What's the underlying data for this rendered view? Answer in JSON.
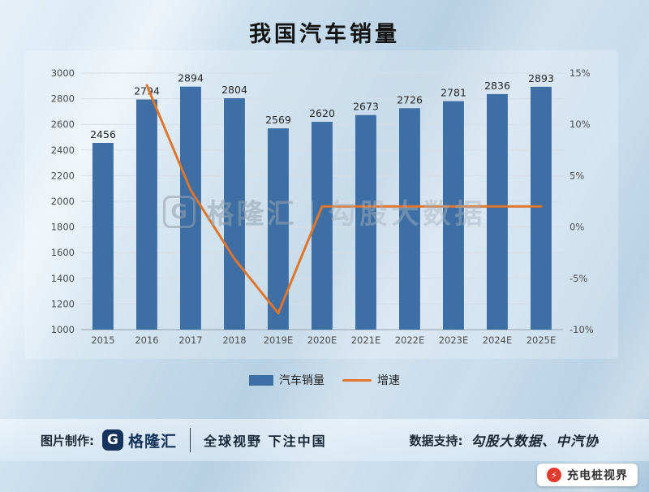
{
  "title": "我国汽车销量",
  "colors": {
    "bar": "#3d6fa5",
    "line": "#e0752c",
    "grid": "#d8dde2",
    "axis_text": "#4d4d4d",
    "badge_red": "#e23b2e",
    "logo_navy": "#16335c"
  },
  "watermark": {
    "logo_letter": "G",
    "brand": "格隆汇",
    "divider": "|",
    "text": "勾股大数据"
  },
  "legend": [
    {
      "label": "汽车销量",
      "swatch": "bar"
    },
    {
      "label": "增速",
      "swatch": "line"
    }
  ],
  "footer": {
    "left_label": "图片制作:",
    "logo_letter": "G",
    "logo_text": "格隆汇",
    "slogan": "全球视野 下注中国",
    "right_label": "数据支持:",
    "right_text": "勾股大数据、中汽协"
  },
  "badge": {
    "icon": "⚡",
    "text": "充电桩视界"
  },
  "chart_data": {
    "type": "bar",
    "title": "我国汽车销量",
    "categories": [
      "2015",
      "2016",
      "2017",
      "2018",
      "2019E",
      "2020E",
      "2021E",
      "2022E",
      "2023E",
      "2024E",
      "2025E"
    ],
    "series": [
      {
        "name": "汽车销量",
        "type": "bar",
        "axis": "left",
        "values": [
          2456,
          2794,
          2894,
          2804,
          2569,
          2620,
          2673,
          2726,
          2781,
          2836,
          2893
        ]
      },
      {
        "name": "增速",
        "type": "line",
        "axis": "right",
        "values": [
          null,
          13.8,
          3.6,
          -3.1,
          -8.4,
          2.0,
          2.0,
          2.0,
          2.0,
          2.0,
          2.0
        ]
      }
    ],
    "left_axis": {
      "min": 1000,
      "max": 3000,
      "step": 200
    },
    "right_axis": {
      "min": -10,
      "max": 15,
      "step": 5,
      "suffix": "%"
    },
    "grid": true,
    "legend_position": "bottom"
  }
}
